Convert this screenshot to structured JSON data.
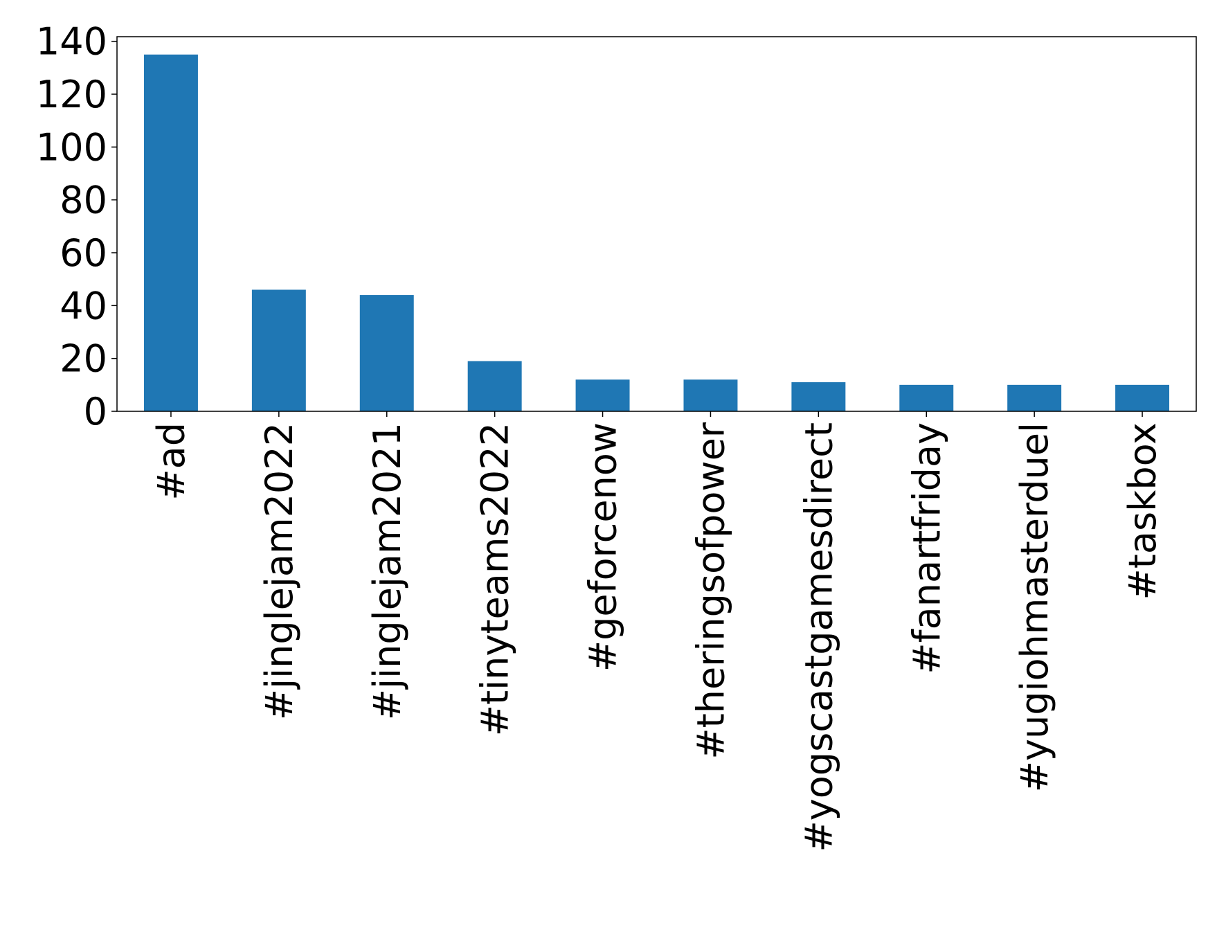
{
  "chart_data": {
    "type": "bar",
    "categories": [
      "#ad",
      "#jinglejam2022",
      "#jinglejam2021",
      "#tinyteams2022",
      "#geforcenow",
      "#theringsofpower",
      "#yogscastgamesdirect",
      "#fanartfriday",
      "#yugiohmasterduel",
      "#taskbox"
    ],
    "values": [
      135,
      46,
      44,
      19,
      12,
      12,
      11,
      10,
      10,
      10
    ],
    "color": "#1f77b4",
    "ylim": [
      0,
      141.75
    ],
    "yticks": [
      0,
      20,
      40,
      60,
      80,
      100,
      120,
      140
    ],
    "grid": false
  }
}
